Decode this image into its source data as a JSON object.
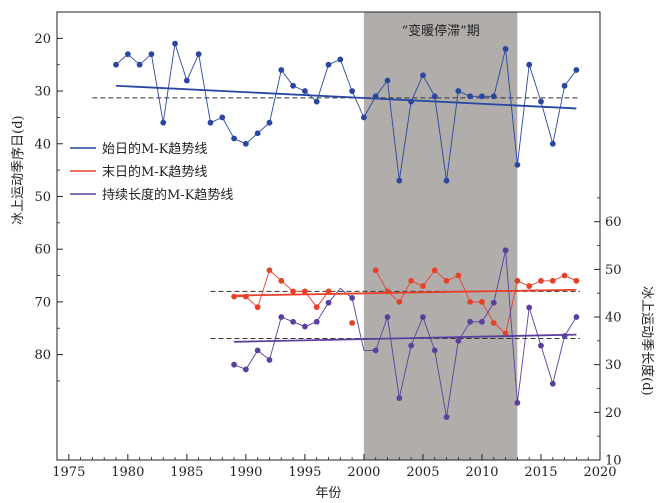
{
  "chart_data": {
    "type": "line",
    "x_label": "年份",
    "y_left_label": "冰上运动季序日(d)",
    "y_right_label": "冰上运动季长度(d)",
    "x_range": [
      1974,
      2020
    ],
    "x_ticks": [
      1975,
      1980,
      1985,
      1990,
      1995,
      2000,
      2005,
      2010,
      2015,
      2020
    ],
    "y_left_range": [
      15,
      100
    ],
    "y_left_reversed": true,
    "y_left_ticks": [
      20,
      30,
      40,
      50,
      60,
      70,
      80
    ],
    "y_right_range": [
      10,
      104
    ],
    "y_right_ticks": [
      10,
      20,
      30,
      40,
      50,
      60
    ],
    "shaded_region": {
      "x_start": 2000,
      "x_end": 2013,
      "label": "“变暖停滞”期",
      "color": "#b1adab"
    },
    "legend_position": "left-middle",
    "series": [
      {
        "name": "始日的M-K趋势线",
        "axis": "left",
        "color": "#2947a0",
        "x": [
          1979,
          1980,
          1981,
          1982,
          1983,
          1984,
          1985,
          1986,
          1987,
          1988,
          1989,
          1990,
          1991,
          1992,
          1993,
          1994,
          1995,
          1996,
          1997,
          1998,
          1999,
          2000,
          2001,
          2002,
          2003,
          2004,
          2005,
          2006,
          2007,
          2008,
          2009,
          2010,
          2011,
          2012,
          2013,
          2014,
          2015,
          2016,
          2017,
          2018
        ],
        "values": [
          25,
          23,
          25,
          23,
          36,
          21,
          28,
          23,
          36,
          35,
          39,
          40,
          38,
          36,
          26,
          29,
          30,
          32,
          25,
          24,
          30,
          35,
          31,
          28,
          47,
          32,
          27,
          31,
          47,
          30,
          31,
          31,
          31,
          22,
          44,
          25,
          32,
          40,
          29,
          26
        ],
        "trend": {
          "x": [
            1979,
            2018
          ],
          "y": [
            29,
            33.3
          ]
        },
        "mean": 31.3
      },
      {
        "name": "末日的M-K趋势线",
        "axis": "left",
        "color": "#e8412a",
        "x": [
          1989,
          1990,
          1991,
          1992,
          1993,
          1994,
          1995,
          1996,
          1997,
          1998,
          1999,
          2000,
          2001,
          2002,
          2003,
          2004,
          2005,
          2006,
          2007,
          2008,
          2009,
          2010,
          2011,
          2012,
          2013,
          2014,
          2015,
          2016,
          2017,
          2018
        ],
        "values": [
          69,
          69,
          71,
          64,
          66,
          68,
          68,
          71,
          68,
          null,
          74,
          null,
          64,
          68,
          70,
          66,
          67,
          64,
          66,
          65,
          70,
          70,
          74,
          76,
          66,
          67,
          66,
          66,
          65,
          66
        ],
        "trend": {
          "x": [
            1989,
            2018
          ],
          "y": [
            68.8,
            67.7
          ]
        },
        "mean": 68
      },
      {
        "name": "持续长度的M-K趋势线",
        "axis": "right",
        "color": "#5b3f9e",
        "x": [
          1989,
          1990,
          1991,
          1992,
          1993,
          1994,
          1995,
          1996,
          1997,
          1998,
          1999,
          2000,
          2001,
          2002,
          2003,
          2004,
          2005,
          2006,
          2007,
          2008,
          2009,
          2010,
          2011,
          2012,
          2013,
          2014,
          2015,
          2016,
          2017,
          2018
        ],
        "values": [
          30,
          29,
          33,
          31,
          40,
          39,
          38,
          39,
          43,
          46,
          44,
          33,
          33,
          40,
          23,
          34,
          40,
          33,
          19,
          35,
          39,
          39,
          43,
          54,
          22,
          42,
          34,
          26,
          36,
          40
        ],
        "markers": [
          true,
          true,
          true,
          true,
          true,
          true,
          true,
          true,
          true,
          false,
          true,
          false,
          true,
          true,
          true,
          true,
          true,
          true,
          true,
          true,
          true,
          true,
          true,
          true,
          true,
          true,
          true,
          true,
          true,
          true
        ],
        "trend": {
          "x": [
            1989,
            2018
          ],
          "y": [
            34.8,
            36.3
          ]
        },
        "mean": 35.5
      }
    ]
  }
}
